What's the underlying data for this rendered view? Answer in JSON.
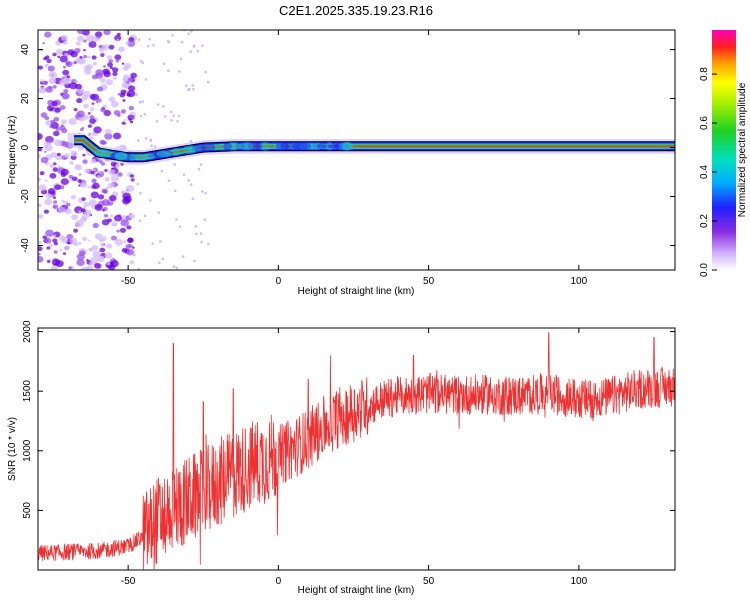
{
  "title": "C2E1.2025.335.19.23.R16",
  "colors": {
    "snr_line": "#f03030",
    "axes": "#000000",
    "spectrum_band_core": "#ff3030",
    "spectrum_band_mid": "#22cc22",
    "spectrum_band_edge": "#2020ff",
    "scatter": "#8a2be2"
  },
  "chart_data": [
    {
      "type": "heatmap",
      "name": "spectrogram",
      "xlabel": "Height of straight line (km)",
      "ylabel": "Frequency (Hz)",
      "xlim": [
        -80,
        132
      ],
      "ylim": [
        -50,
        48
      ],
      "xticks": [
        -50,
        0,
        50,
        100
      ],
      "yticks": [
        40,
        20,
        0,
        -20,
        -40
      ],
      "xtick_labels": [
        "-50",
        "0",
        "50",
        "100"
      ],
      "ytick_labels": [
        "40",
        "20",
        "0",
        "-20",
        "-40"
      ],
      "signal_center_hz": [
        {
          "x": -65,
          "y": 3
        },
        {
          "x": -60,
          "y": -2
        },
        {
          "x": -55,
          "y": -3
        },
        {
          "x": -50,
          "y": -4
        },
        {
          "x": -45,
          "y": -4
        },
        {
          "x": -40,
          "y": -3
        },
        {
          "x": -35,
          "y": -2
        },
        {
          "x": -30,
          "y": -1
        },
        {
          "x": -25,
          "y": 0
        },
        {
          "x": -15,
          "y": 0.5
        },
        {
          "x": 0,
          "y": 0.5
        },
        {
          "x": 50,
          "y": 0.5
        },
        {
          "x": 100,
          "y": 0.5
        },
        {
          "x": 132,
          "y": 0.5
        }
      ],
      "noise_region_x": [
        -80,
        -48
      ],
      "colorbar": {
        "label": "Normalized spectral amplitude",
        "range": [
          0.0,
          0.98
        ],
        "ticks": [
          0.0,
          0.2,
          0.4,
          0.6,
          0.8
        ],
        "tick_labels": [
          "0.0",
          "0.2",
          "0.4",
          "0.6",
          "0.8"
        ]
      }
    },
    {
      "type": "line",
      "name": "snr",
      "xlabel": "Height of straight line (km)",
      "ylabel": "SNR (10 * v/v)",
      "xlim": [
        -80,
        132
      ],
      "ylim": [
        0,
        2030
      ],
      "xticks": [
        -50,
        0,
        50,
        100
      ],
      "yticks": [
        500,
        1000,
        1500,
        2000
      ],
      "xtick_labels": [
        "-50",
        "0",
        "50",
        "100"
      ],
      "ytick_labels": [
        "500",
        "1000",
        "1500",
        "2000"
      ],
      "series": [
        {
          "name": "SNR",
          "trend": [
            {
              "x": -80,
              "y": 140
            },
            {
              "x": -70,
              "y": 150
            },
            {
              "x": -60,
              "y": 160
            },
            {
              "x": -50,
              "y": 200
            },
            {
              "x": -45,
              "y": 280
            },
            {
              "x": -40,
              "y": 420
            },
            {
              "x": -35,
              "y": 520
            },
            {
              "x": -30,
              "y": 580
            },
            {
              "x": -25,
              "y": 650
            },
            {
              "x": -20,
              "y": 730
            },
            {
              "x": -15,
              "y": 800
            },
            {
              "x": -10,
              "y": 870
            },
            {
              "x": -5,
              "y": 920
            },
            {
              "x": 0,
              "y": 960
            },
            {
              "x": 5,
              "y": 1020
            },
            {
              "x": 10,
              "y": 1100
            },
            {
              "x": 15,
              "y": 1200
            },
            {
              "x": 20,
              "y": 1280
            },
            {
              "x": 25,
              "y": 1330
            },
            {
              "x": 30,
              "y": 1380
            },
            {
              "x": 35,
              "y": 1430
            },
            {
              "x": 40,
              "y": 1460
            },
            {
              "x": 50,
              "y": 1480
            },
            {
              "x": 60,
              "y": 1470
            },
            {
              "x": 70,
              "y": 1470
            },
            {
              "x": 80,
              "y": 1460
            },
            {
              "x": 90,
              "y": 1480
            },
            {
              "x": 100,
              "y": 1430
            },
            {
              "x": 110,
              "y": 1450
            },
            {
              "x": 120,
              "y": 1520
            },
            {
              "x": 132,
              "y": 1540
            }
          ],
          "spikes": [
            {
              "x": -35,
              "y": 1900
            },
            {
              "x": -25,
              "y": 1410
            },
            {
              "x": -15,
              "y": 1520
            },
            {
              "x": 10,
              "y": 1600
            },
            {
              "x": 45,
              "y": 1800
            },
            {
              "x": 90,
              "y": 1990
            },
            {
              "x": 125,
              "y": 1950
            }
          ]
        }
      ]
    }
  ]
}
